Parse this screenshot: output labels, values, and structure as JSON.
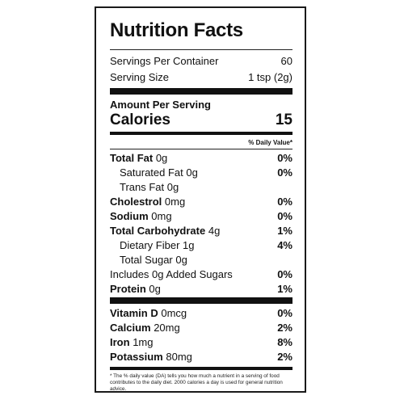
{
  "title": "Nutrition Facts",
  "servings": {
    "label": "Servings Per Container",
    "value": "60"
  },
  "serving_size": {
    "label": "Serving Size",
    "value": "1 tsp (2g)"
  },
  "amount_per_serving": "Amount Per Serving",
  "calories": {
    "label": "Calories",
    "value": "15"
  },
  "daily_value_header": "% Daily Value*",
  "nutrients": [
    {
      "name": "Total Fat",
      "amount": "0g",
      "dv": "0%"
    },
    {
      "name": "Saturated Fat",
      "amount": "0g",
      "dv": "0%"
    },
    {
      "name": "Trans Fat",
      "amount": "0g",
      "dv": ""
    },
    {
      "name": "Cholestrol",
      "amount": "0mg",
      "dv": "0%"
    },
    {
      "name": "Sodium",
      "amount": "0mg",
      "dv": "0%"
    },
    {
      "name": "Total Carbohydrate",
      "amount": "4g",
      "dv": "1%"
    },
    {
      "name": "Dietary Fiber",
      "amount": "1g",
      "dv": "4%"
    },
    {
      "name": "Total Sugar",
      "amount": "0g",
      "dv": ""
    },
    {
      "name": "Includes 0g Added Sugars",
      "amount": "",
      "dv": "0%"
    },
    {
      "name": "Protein",
      "amount": "0g",
      "dv": "1%"
    }
  ],
  "vitamins": [
    {
      "name": "Vitamin D",
      "amount": "0mcg",
      "dv": "0%"
    },
    {
      "name": "Calcium",
      "amount": "20mg",
      "dv": "2%"
    },
    {
      "name": "Iron",
      "amount": "1mg",
      "dv": "8%"
    },
    {
      "name": "Potassium",
      "amount": "80mg",
      "dv": "2%"
    }
  ],
  "footnote": "* The % daily value (DA) tells you how much a nutrient in a serving of food contributes to the daily diet. 2000 calories a day is used for general nutrition advice."
}
